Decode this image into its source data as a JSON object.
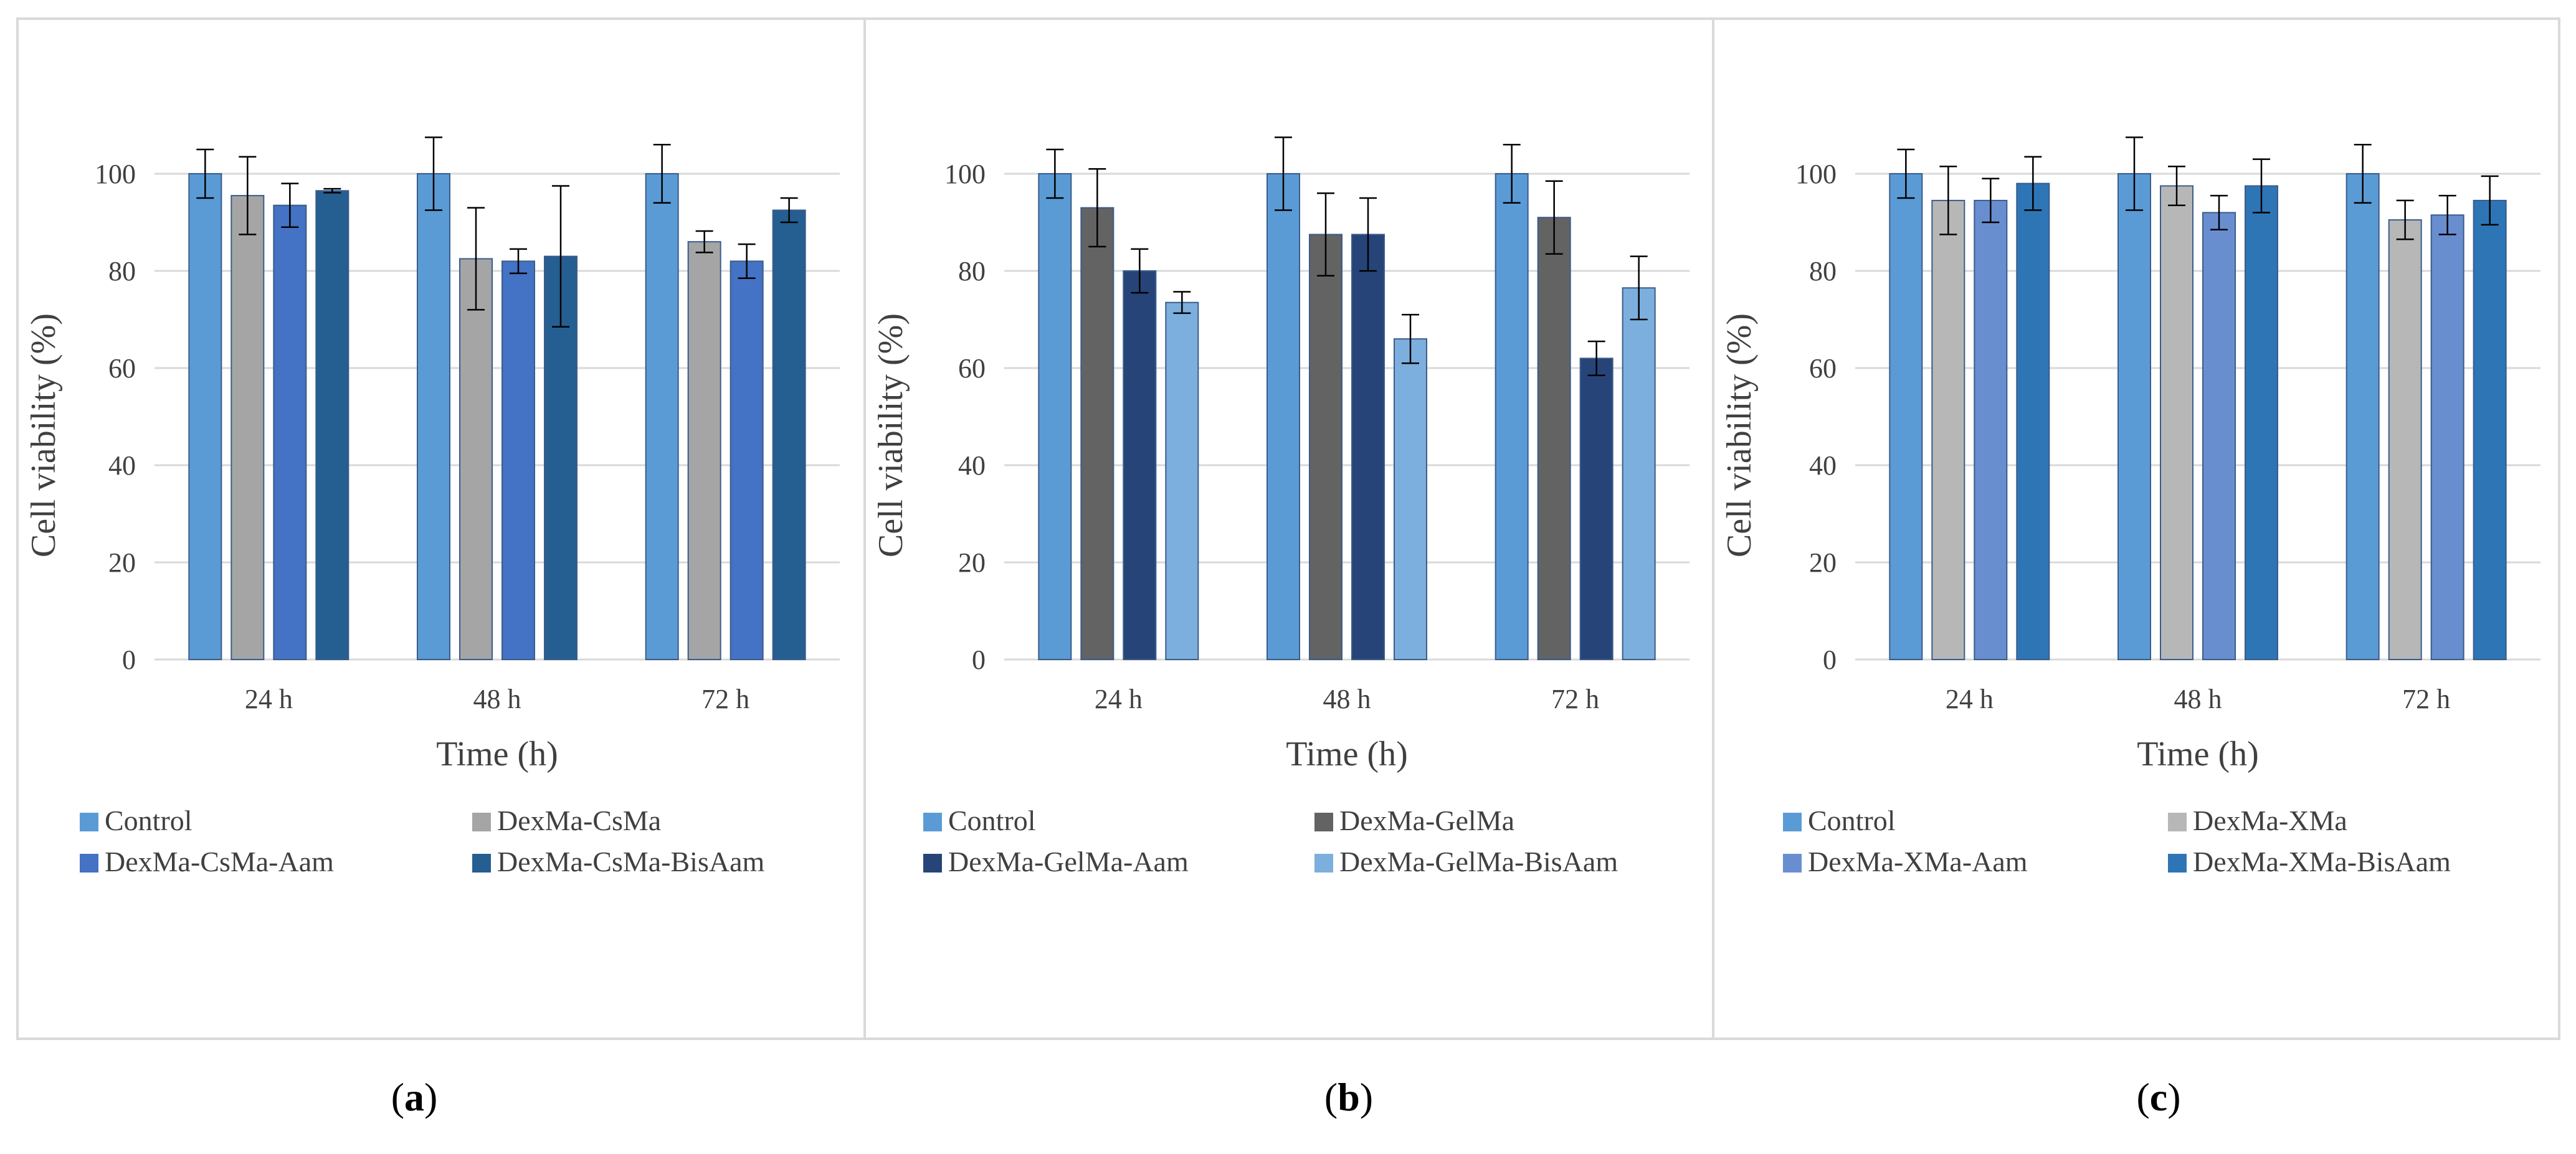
{
  "chart_data": [
    {
      "panel": "a",
      "type": "bar",
      "xlabel": "Time (h)",
      "ylabel": "Cell viability (%)",
      "ylim": [
        0,
        120
      ],
      "yticks": [
        0,
        20,
        40,
        60,
        80,
        100
      ],
      "grid": true,
      "legend": "bottom",
      "categories": [
        "24 h",
        "48 h",
        "72 h"
      ],
      "series": [
        {
          "name": "Control",
          "values": [
            100,
            100,
            100
          ],
          "errors": [
            5,
            7.5,
            6
          ],
          "color": "#5B9BD5"
        },
        {
          "name": "DexMa-CsMa",
          "values": [
            95.5,
            82.5,
            86
          ],
          "errors": [
            8,
            10.5,
            2.2
          ],
          "color": "#A5A5A5"
        },
        {
          "name": "DexMa-CsMa-Aam",
          "values": [
            93.5,
            82,
            82
          ],
          "errors": [
            4.5,
            2.5,
            3.5
          ],
          "color": "#4472C4"
        },
        {
          "name": "DexMa-CsMa-BisAam",
          "values": [
            96.5,
            83,
            92.5
          ],
          "errors": [
            0.4,
            14.5,
            2.5
          ],
          "color": "#255E91"
        }
      ]
    },
    {
      "panel": "b",
      "type": "bar",
      "xlabel": "Time (h)",
      "ylabel": "Cell viability (%)",
      "ylim": [
        0,
        120
      ],
      "yticks": [
        0,
        20,
        40,
        60,
        80,
        100
      ],
      "grid": true,
      "legend": "bottom",
      "categories": [
        "24 h",
        "48 h",
        "72 h"
      ],
      "series": [
        {
          "name": "Control",
          "values": [
            100,
            100,
            100
          ],
          "errors": [
            5,
            7.5,
            6
          ],
          "color": "#5B9BD5"
        },
        {
          "name": "DexMa-GelMa",
          "values": [
            93,
            87.5,
            91
          ],
          "errors": [
            8,
            8.5,
            7.5
          ],
          "color": "#636363"
        },
        {
          "name": "DexMa-GelMa-Aam",
          "values": [
            80,
            87.5,
            62
          ],
          "errors": [
            4.5,
            7.5,
            3.5
          ],
          "color": "#264478"
        },
        {
          "name": "DexMa-GelMa-BisAam",
          "values": [
            73.5,
            66,
            76.5
          ],
          "errors": [
            2.2,
            5,
            6.5
          ],
          "color": "#7CAFDD"
        }
      ]
    },
    {
      "panel": "c",
      "type": "bar",
      "xlabel": "Time (h)",
      "ylabel": "Cell viability (%)",
      "ylim": [
        0,
        120
      ],
      "yticks": [
        0,
        20,
        40,
        60,
        80,
        100
      ],
      "grid": true,
      "legend": "bottom",
      "categories": [
        "24 h",
        "48 h",
        "72 h"
      ],
      "series": [
        {
          "name": "Control",
          "values": [
            100,
            100,
            100
          ],
          "errors": [
            5,
            7.5,
            6
          ],
          "color": "#5B9BD5"
        },
        {
          "name": "DexMa-XMa",
          "values": [
            94.5,
            97.5,
            90.5
          ],
          "errors": [
            7,
            4,
            4
          ],
          "color": "#B7B7B7"
        },
        {
          "name": "DexMa-XMa-Aam",
          "values": [
            94.5,
            92,
            91.5
          ],
          "errors": [
            4.5,
            3.5,
            4
          ],
          "color": "#698ED0"
        },
        {
          "name": "DexMa-XMa-BisAam",
          "values": [
            98,
            97.5,
            94.5
          ],
          "errors": [
            5.5,
            5.5,
            5
          ],
          "color": "#2E75B6"
        }
      ]
    }
  ],
  "panel_labels": [
    "a",
    "b",
    "c"
  ]
}
